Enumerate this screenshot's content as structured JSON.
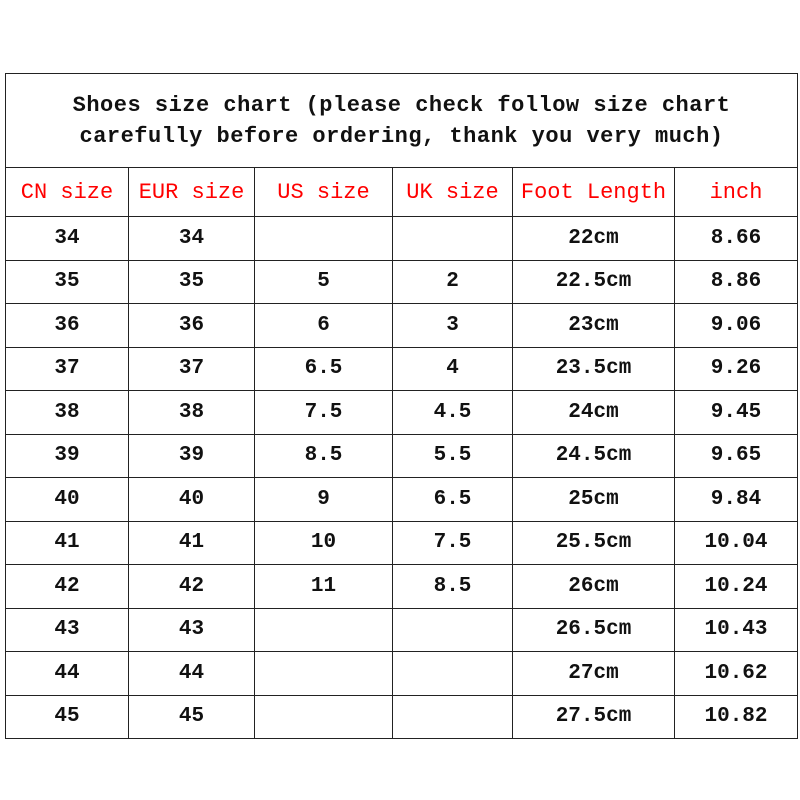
{
  "title": {
    "line1": "Shoes size chart (please check follow size chart",
    "line2": "carefully before ordering, thank you very much)"
  },
  "colors": {
    "header_text": "#ff0000",
    "body_text": "#111111",
    "border": "#222222"
  },
  "headers": [
    "CN size",
    "EUR size",
    "US size",
    "UK size",
    "Foot Length",
    "inch"
  ],
  "rows": [
    [
      "34",
      "34",
      "",
      "",
      "22cm",
      "8.66"
    ],
    [
      "35",
      "35",
      "5",
      "2",
      "22.5cm",
      "8.86"
    ],
    [
      "36",
      "36",
      "6",
      "3",
      "23cm",
      "9.06"
    ],
    [
      "37",
      "37",
      "6.5",
      "4",
      "23.5cm",
      "9.26"
    ],
    [
      "38",
      "38",
      "7.5",
      "4.5",
      "24cm",
      "9.45"
    ],
    [
      "39",
      "39",
      "8.5",
      "5.5",
      "24.5cm",
      "9.65"
    ],
    [
      "40",
      "40",
      "9",
      "6.5",
      "25cm",
      "9.84"
    ],
    [
      "41",
      "41",
      "10",
      "7.5",
      "25.5cm",
      "10.04"
    ],
    [
      "42",
      "42",
      "11",
      "8.5",
      "26cm",
      "10.24"
    ],
    [
      "43",
      "43",
      "",
      "",
      "26.5cm",
      "10.43"
    ],
    [
      "44",
      "44",
      "",
      "",
      "27cm",
      "10.62"
    ],
    [
      "45",
      "45",
      "",
      "",
      "27.5cm",
      "10.82"
    ]
  ]
}
